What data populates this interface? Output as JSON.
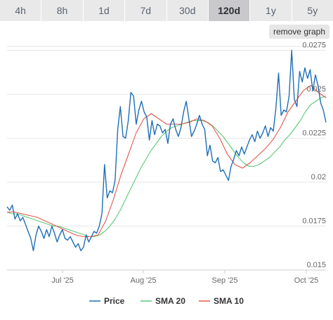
{
  "tabs": [
    {
      "label": "4h"
    },
    {
      "label": "8h"
    },
    {
      "label": "1d"
    },
    {
      "label": "7d"
    },
    {
      "label": "30d"
    },
    {
      "label": "120d",
      "active": true
    },
    {
      "label": "1y"
    },
    {
      "label": "5y"
    }
  ],
  "remove_graph_label": "remove graph",
  "chart_data": {
    "type": "line",
    "x_labels": [
      "Jul '25",
      "Aug '25",
      "Sep '25",
      "Oct '25"
    ],
    "y_ticks": [
      0.015,
      0.0175,
      0.02,
      0.0225,
      0.025,
      0.0275
    ],
    "y_tick_labels": [
      "0.015",
      "0.0175",
      "0.02",
      "0.0225",
      "0.025",
      "0.0275"
    ],
    "ylim": [
      0.015,
      0.0278
    ],
    "grid": true,
    "legend_position": "bottom",
    "series": [
      {
        "name": "Price",
        "color": "#1f6fb5",
        "values": [
          0.0186,
          0.0184,
          0.0187,
          0.0179,
          0.0182,
          0.0178,
          0.018,
          0.0176,
          0.0172,
          0.0168,
          0.0161,
          0.017,
          0.0175,
          0.0172,
          0.0168,
          0.0173,
          0.0169,
          0.0175,
          0.0171,
          0.0166,
          0.017,
          0.0173,
          0.0168,
          0.0167,
          0.0169,
          0.0166,
          0.0163,
          0.0165,
          0.0161,
          0.0163,
          0.017,
          0.0166,
          0.0169,
          0.0172,
          0.0171,
          0.0175,
          0.0182,
          0.021,
          0.0191,
          0.0195,
          0.0194,
          0.0201,
          0.023,
          0.0243,
          0.0226,
          0.0225,
          0.0235,
          0.0251,
          0.0249,
          0.0233,
          0.0241,
          0.0246,
          0.024,
          0.0237,
          0.0224,
          0.0235,
          0.0227,
          0.0233,
          0.0232,
          0.0228,
          0.023,
          0.0222,
          0.0233,
          0.0236,
          0.023,
          0.0226,
          0.0231,
          0.024,
          0.0246,
          0.0236,
          0.0226,
          0.0229,
          0.0233,
          0.0238,
          0.0233,
          0.023,
          0.0215,
          0.0221,
          0.0212,
          0.0211,
          0.0214,
          0.0206,
          0.0207,
          0.0204,
          0.0201,
          0.0209,
          0.0213,
          0.0218,
          0.0215,
          0.022,
          0.0216,
          0.022,
          0.0224,
          0.0227,
          0.0223,
          0.0229,
          0.0225,
          0.0228,
          0.0232,
          0.0226,
          0.0231,
          0.0229,
          0.0242,
          0.0262,
          0.0238,
          0.0241,
          0.024,
          0.0249,
          0.0275,
          0.0247,
          0.0243,
          0.0263,
          0.0257,
          0.0265,
          0.0259,
          0.0264,
          0.0252,
          0.0261,
          0.0255,
          0.0245,
          0.0241,
          0.0234
        ]
      },
      {
        "name": "SMA 20",
        "color": "#5cc97a",
        "values": [
          0.0183,
          0.0182,
          0.0182,
          0.0181,
          0.018,
          0.0179,
          0.0178,
          0.0177,
          0.0176,
          0.0175,
          0.0175,
          0.0174,
          0.0173,
          0.0172,
          0.0171,
          0.017,
          0.0169,
          0.0169,
          0.017,
          0.0172,
          0.0175,
          0.0179,
          0.0184,
          0.019,
          0.0196,
          0.0202,
          0.0208,
          0.0213,
          0.0218,
          0.0222,
          0.0226,
          0.0229,
          0.0231,
          0.0232,
          0.0233,
          0.0234,
          0.0235,
          0.0235,
          0.0235,
          0.0234,
          0.0232,
          0.0229,
          0.0226,
          0.0222,
          0.0218,
          0.0214,
          0.0211,
          0.0209,
          0.0209,
          0.021,
          0.0212,
          0.0214,
          0.0217,
          0.022,
          0.0224,
          0.0227,
          0.0231,
          0.0235,
          0.024,
          0.0244,
          0.0246,
          0.0248,
          0.0249
        ],
        "x_start_index": 0,
        "x_end_index": 121
      },
      {
        "name": "SMA 10",
        "color": "#e4574c",
        "values": [
          0.0183,
          0.0183,
          0.0182,
          0.0181,
          0.018,
          0.0178,
          0.0176,
          0.0174,
          0.0172,
          0.017,
          0.0169,
          0.0169,
          0.017,
          0.0178,
          0.019,
          0.0204,
          0.0216,
          0.0228,
          0.0236,
          0.0239,
          0.0236,
          0.0233,
          0.0233,
          0.0233,
          0.0234,
          0.0236,
          0.0235,
          0.0232,
          0.0225,
          0.0216,
          0.021,
          0.0208,
          0.0211,
          0.0215,
          0.0219,
          0.0224,
          0.0231,
          0.024,
          0.0246,
          0.0252,
          0.0255,
          0.0251,
          0.0248
        ],
        "x_start_index": 0,
        "x_end_index": 121
      }
    ]
  }
}
